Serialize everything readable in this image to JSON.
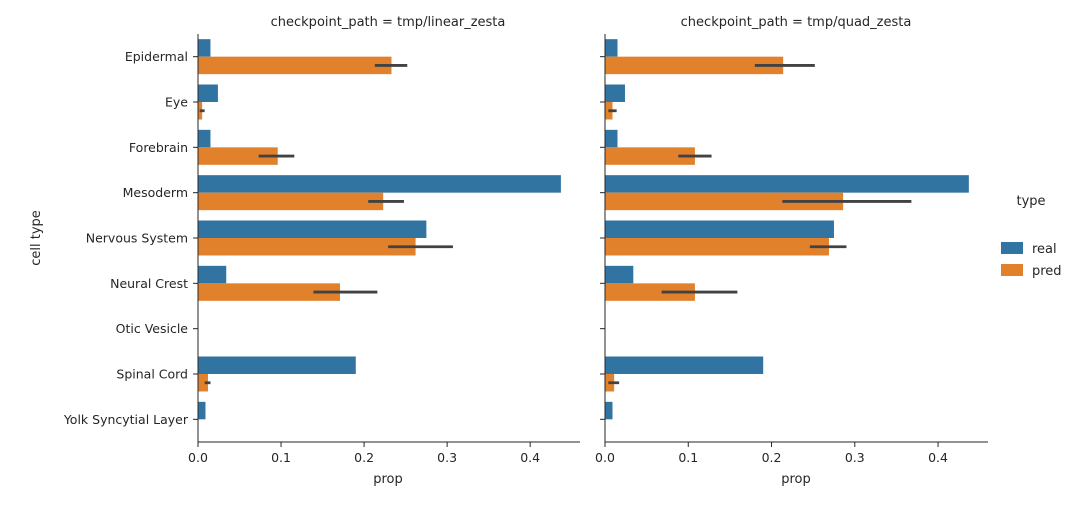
{
  "chart_data": {
    "type": "bar",
    "orientation": "horizontal",
    "ylabel": "cell type",
    "categories": [
      "Epidermal",
      "Eye",
      "Forebrain",
      "Mesoderm",
      "Nervous System",
      "Neural Crest",
      "Otic Vesicle",
      "Spinal Cord",
      "Yolk Syncytial Layer"
    ],
    "legend": {
      "title": "type",
      "placement": "right",
      "entries": [
        {
          "name": "real",
          "color": "#3274a1"
        },
        {
          "name": "pred",
          "color": "#e1812c"
        }
      ]
    },
    "xticks": [
      "0.0",
      "0.1",
      "0.2",
      "0.3",
      "0.4"
    ],
    "xlim": [
      0,
      0.46
    ],
    "panels": [
      {
        "title": "checkpoint_path = tmp/linear_zesta",
        "xlabel": "prop",
        "series": [
          {
            "name": "real",
            "values": [
              0.015,
              0.024,
              0.015,
              0.437,
              0.275,
              0.034,
              0,
              0.19,
              0.009
            ]
          },
          {
            "name": "pred",
            "values": [
              0.233,
              0.005,
              0.096,
              0.223,
              0.262,
              0.171,
              0,
              0.012,
              0
            ]
          }
        ],
        "error_bars": {
          "series": "pred",
          "ranges": [
            [
              0.213,
              0.252
            ],
            [
              0.002,
              0.008
            ],
            [
              0.073,
              0.116
            ],
            [
              0.205,
              0.248
            ],
            [
              0.229,
              0.307
            ],
            [
              0.139,
              0.216
            ],
            null,
            [
              0.008,
              0.015
            ],
            null
          ]
        }
      },
      {
        "title": "checkpoint_path = tmp/quad_zesta",
        "xlabel": "prop",
        "series": [
          {
            "name": "real",
            "values": [
              0.015,
              0.024,
              0.015,
              0.437,
              0.275,
              0.034,
              0,
              0.19,
              0.009
            ]
          },
          {
            "name": "pred",
            "values": [
              0.214,
              0.009,
              0.108,
              0.286,
              0.269,
              0.108,
              0,
              0.011,
              0
            ]
          }
        ],
        "error_bars": {
          "series": "pred",
          "ranges": [
            [
              0.18,
              0.252
            ],
            [
              0.004,
              0.014
            ],
            [
              0.088,
              0.128
            ],
            [
              0.213,
              0.368
            ],
            [
              0.246,
              0.29
            ],
            [
              0.068,
              0.159
            ],
            null,
            [
              0.004,
              0.017
            ],
            null
          ]
        }
      }
    ],
    "grid": false
  }
}
